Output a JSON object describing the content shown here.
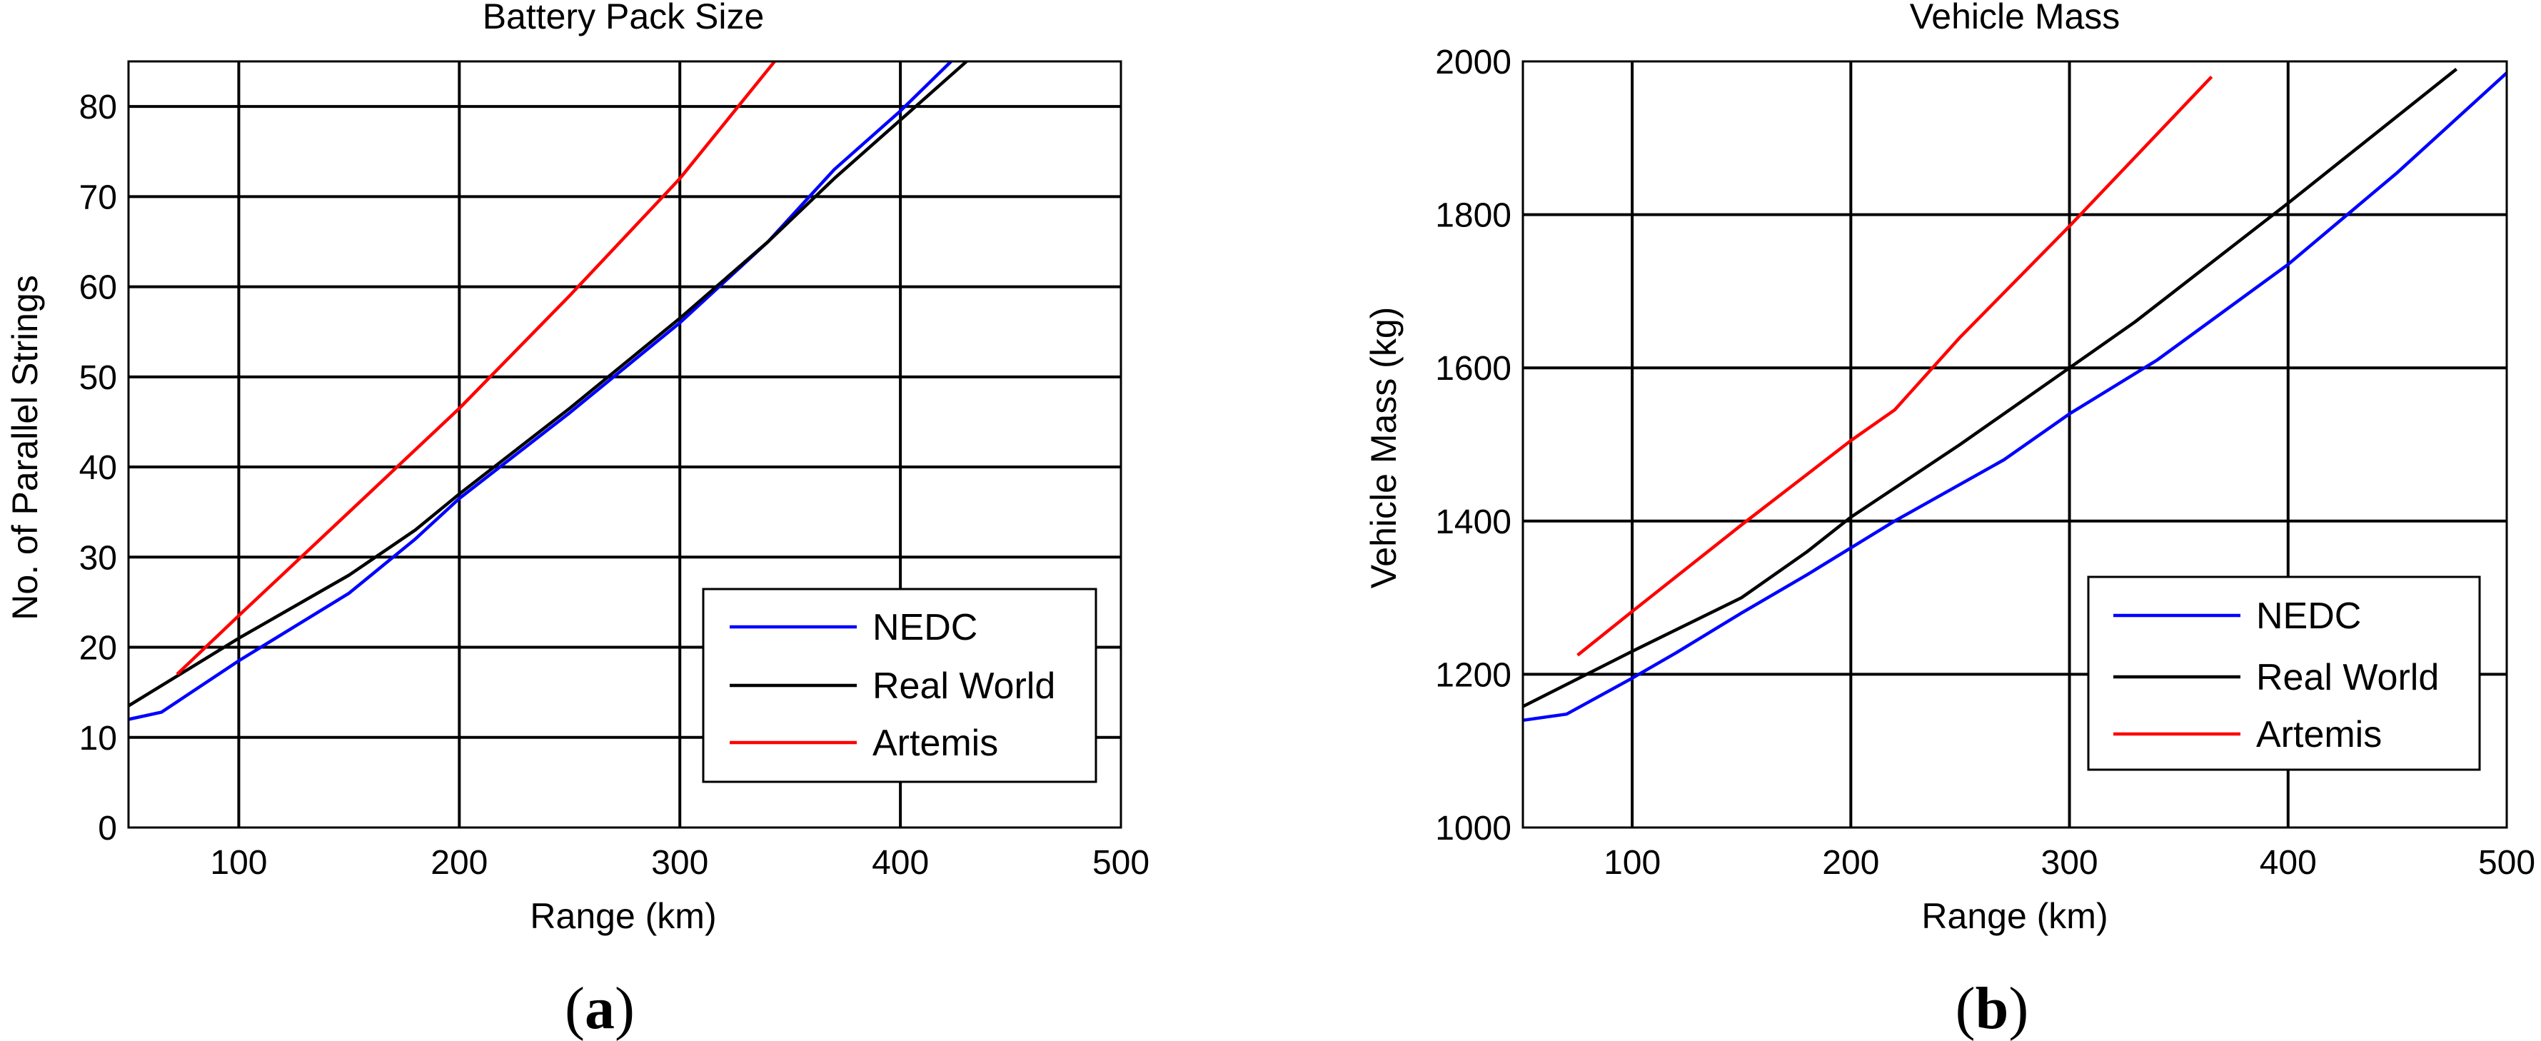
{
  "chart_data": [
    {
      "type": "line",
      "title": "Battery Pack Size",
      "xlabel": "Range (km)",
      "ylabel": "No. of Parallel Strings",
      "xlim": [
        50,
        500
      ],
      "ylim": [
        0,
        85
      ],
      "xticks": [
        100,
        200,
        300,
        400,
        500
      ],
      "yticks": [
        0,
        10,
        20,
        30,
        40,
        50,
        60,
        70,
        80
      ],
      "grid": true,
      "legend_position": "bottom-right",
      "panel_label": "a",
      "series": [
        {
          "name": "NEDC",
          "color": "#0000ff",
          "points": [
            [
              50,
              12
            ],
            [
              65,
              12.8
            ],
            [
              100,
              18.5
            ],
            [
              150,
              26
            ],
            [
              180,
              32
            ],
            [
              200,
              36.5
            ],
            [
              250,
              46
            ],
            [
              300,
              56
            ],
            [
              340,
              65
            ],
            [
              370,
              73
            ],
            [
              400,
              79.5
            ],
            [
              423,
              85
            ]
          ]
        },
        {
          "name": "Real World",
          "color": "#000000",
          "points": [
            [
              50,
              13.5
            ],
            [
              100,
              21
            ],
            [
              150,
              28
            ],
            [
              180,
              33
            ],
            [
              200,
              37
            ],
            [
              250,
              46.5
            ],
            [
              300,
              56.5
            ],
            [
              340,
              65
            ],
            [
              370,
              72
            ],
            [
              400,
              78.5
            ],
            [
              430,
              85
            ]
          ]
        },
        {
          "name": "Artemis",
          "color": "#ff0000",
          "points": [
            [
              72,
              17
            ],
            [
              100,
              23.5
            ],
            [
              150,
              35
            ],
            [
              200,
              46.5
            ],
            [
              250,
              59
            ],
            [
              300,
              72
            ],
            [
              343,
              85
            ]
          ]
        }
      ]
    },
    {
      "type": "line",
      "title": "Vehicle Mass",
      "xlabel": "Range (km)",
      "ylabel": "Vehicle Mass (kg)",
      "xlim": [
        50,
        500
      ],
      "ylim": [
        1000,
        2000
      ],
      "xticks": [
        100,
        200,
        300,
        400,
        500
      ],
      "yticks": [
        1000,
        1200,
        1400,
        1600,
        1800,
        2000
      ],
      "grid": true,
      "legend_position": "bottom-right",
      "panel_label": "b",
      "series": [
        {
          "name": "NEDC",
          "color": "#0000ff",
          "points": [
            [
              50,
              1140
            ],
            [
              70,
              1148
            ],
            [
              100,
              1195
            ],
            [
              120,
              1228
            ],
            [
              150,
              1280
            ],
            [
              180,
              1330
            ],
            [
              220,
              1400
            ],
            [
              270,
              1480
            ],
            [
              300,
              1540
            ],
            [
              340,
              1610
            ],
            [
              400,
              1735
            ],
            [
              450,
              1855
            ],
            [
              500,
              1985
            ]
          ]
        },
        {
          "name": "Real World",
          "color": "#000000",
          "points": [
            [
              50,
              1158
            ],
            [
              100,
              1230
            ],
            [
              150,
              1300
            ],
            [
              180,
              1360
            ],
            [
              200,
              1405
            ],
            [
              250,
              1500
            ],
            [
              300,
              1600
            ],
            [
              330,
              1660
            ],
            [
              400,
              1815
            ],
            [
              477,
              1990
            ]
          ]
        },
        {
          "name": "Artemis",
          "color": "#ff0000",
          "points": [
            [
              75,
              1225
            ],
            [
              100,
              1282
            ],
            [
              150,
              1395
            ],
            [
              200,
              1505
            ],
            [
              220,
              1545
            ],
            [
              250,
              1640
            ],
            [
              300,
              1785
            ],
            [
              365,
              1980
            ]
          ]
        }
      ]
    }
  ]
}
